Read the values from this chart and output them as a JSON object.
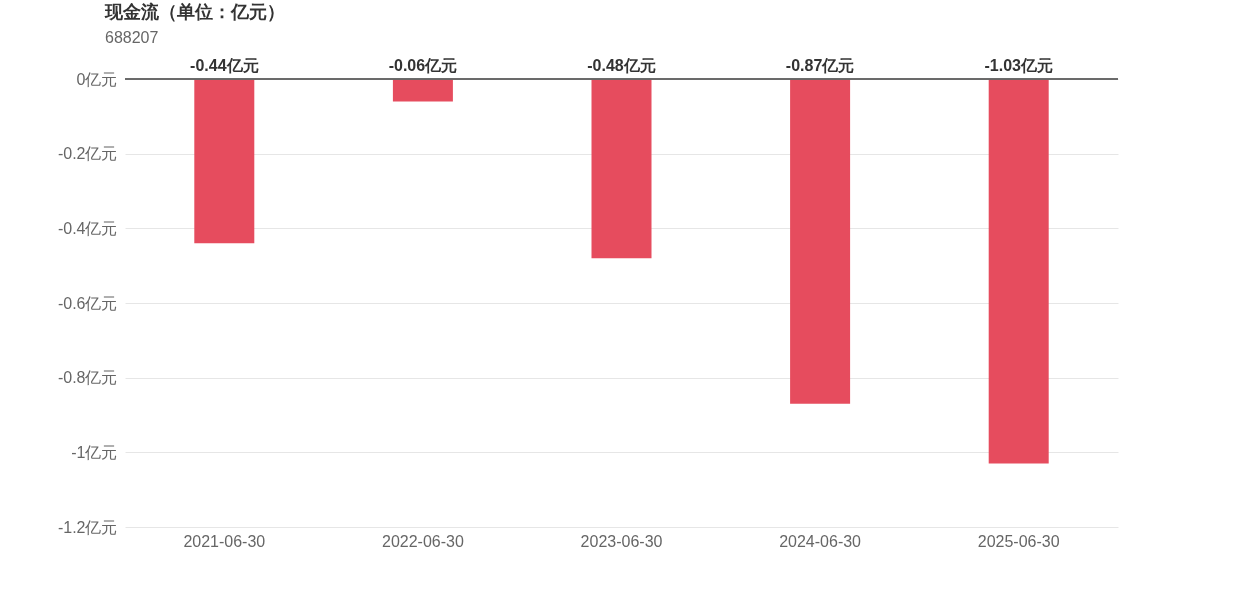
{
  "chart_data": {
    "type": "bar",
    "title": "现金流（单位：亿元）",
    "subtitle": "688207",
    "categories": [
      "2021-06-30",
      "2022-06-30",
      "2023-06-30",
      "2024-06-30",
      "2025-06-30"
    ],
    "values": [
      -0.44,
      -0.06,
      -0.48,
      -0.87,
      -1.03
    ],
    "value_labels": [
      "-0.44亿元",
      "-0.06亿元",
      "-0.48亿元",
      "-0.87亿元",
      "-1.03亿元"
    ],
    "color": "#e64c5e",
    "ylim": [
      -1.2,
      0
    ],
    "yticks": [
      {
        "value": 0,
        "label": "0亿元"
      },
      {
        "value": -0.2,
        "label": "-0.2亿元"
      },
      {
        "value": -0.4,
        "label": "-0.4亿元"
      },
      {
        "value": -0.6,
        "label": "-0.6亿元"
      },
      {
        "value": -0.8,
        "label": "-0.8亿元"
      },
      {
        "value": -1,
        "label": "-1亿元"
      },
      {
        "value": -1.2,
        "label": "-1.2亿元"
      }
    ],
    "grid": "y"
  }
}
